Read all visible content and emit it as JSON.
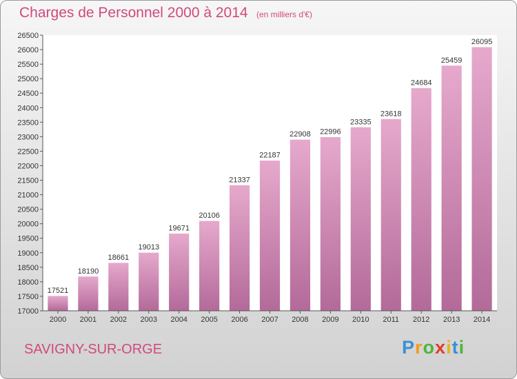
{
  "header": {
    "title": "Charges de Personnel 2000 à 2014",
    "subtitle": "(en milliers d'€)"
  },
  "footer": {
    "place": "SAVIGNY-SUR-ORGE",
    "logo": [
      "P",
      "r",
      "o",
      "x",
      "i",
      "t",
      "i"
    ],
    "logo_colors": [
      "#3a8fd6",
      "#f29a1b",
      "#4fb53a",
      "#e23b2c",
      "#e8b21a",
      "#3a8fd6",
      "#4fb53a"
    ]
  },
  "colors": {
    "bar_light": "#e6a9cc",
    "bar_dark": "#b36a99",
    "title": "#d0497d"
  },
  "chart_data": {
    "type": "bar",
    "title": "Charges de Personnel 2000 à 2014",
    "subtitle": "(en milliers d'€)",
    "categories": [
      "2000",
      "2001",
      "2002",
      "2003",
      "2004",
      "2005",
      "2006",
      "2007",
      "2008",
      "2009",
      "2010",
      "2011",
      "2012",
      "2013",
      "2014"
    ],
    "values": [
      17521,
      18190,
      18661,
      19013,
      19671,
      20106,
      21337,
      22187,
      22908,
      22996,
      23335,
      23618,
      24684,
      25459,
      26095
    ],
    "ylim": [
      17000,
      26500
    ],
    "yticks": [
      17000,
      17500,
      18000,
      18500,
      19000,
      19500,
      20000,
      20500,
      21000,
      21500,
      22000,
      22500,
      23000,
      23500,
      24000,
      24500,
      25000,
      25500,
      26000,
      26500
    ],
    "grid": false,
    "xlabel": "",
    "ylabel": ""
  }
}
